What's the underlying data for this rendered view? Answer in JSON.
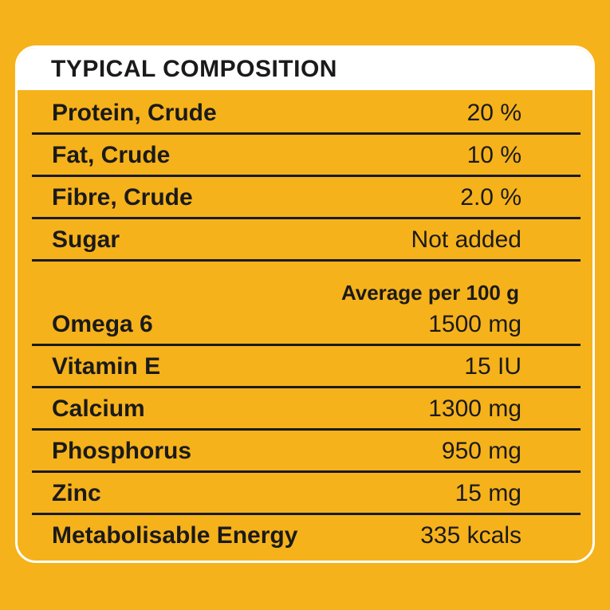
{
  "header": {
    "title": "TYPICAL COMPOSITION"
  },
  "table": {
    "rows": [
      [
        "Protein, Crude",
        "20 %"
      ],
      [
        "Fat, Crude",
        "10 %"
      ],
      [
        "Fibre, Crude",
        "2.0 %"
      ],
      [
        "Sugar",
        "Not added"
      ]
    ]
  },
  "subheading": "Average per 100 g",
  "table2": {
    "rows": [
      [
        "Omega 6",
        "1500 mg"
      ],
      [
        "Vitamin E",
        "15 IU"
      ],
      [
        "Calcium",
        "1300 mg"
      ],
      [
        "Phosphorus",
        "950 mg"
      ],
      [
        "Zinc",
        "15 mg"
      ],
      [
        "Metabolisable Energy",
        "335 kcals"
      ]
    ]
  }
}
